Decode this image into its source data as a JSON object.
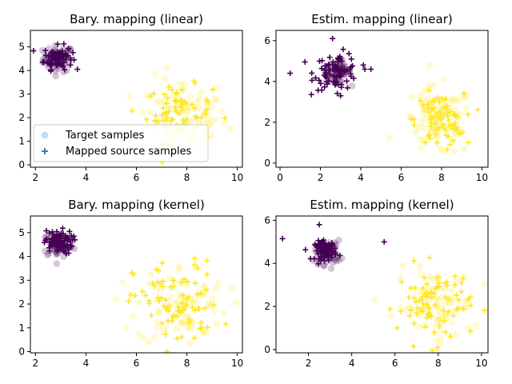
{
  "colors": {
    "dark": "#440154",
    "yellow": "#fde725",
    "target_marker": "#1f77b4"
  },
  "legend": {
    "placement": "lower-left of first panel",
    "entries": [
      "Target samples",
      "Mapped source samples"
    ]
  },
  "chart_data": [
    {
      "type": "scatter",
      "title": "Bary. mapping (linear)",
      "xlim": [
        1.8,
        10.2
      ],
      "ylim": [
        -0.1,
        5.7
      ],
      "xticks": [
        2,
        4,
        6,
        8,
        10
      ],
      "yticks": [
        0,
        1,
        2,
        3,
        4,
        5
      ],
      "target_clusters": [
        {
          "cx": 2.9,
          "cy": 4.5,
          "sx": 0.3,
          "sy": 0.28,
          "n": 60,
          "color": "dark"
        },
        {
          "cx": 7.8,
          "cy": 2.0,
          "sx": 0.9,
          "sy": 0.85,
          "n": 80,
          "color": "yellow"
        }
      ],
      "source_clusters": [
        {
          "cx": 2.9,
          "cy": 4.55,
          "sx": 0.28,
          "sy": 0.25,
          "n": 80,
          "color": "dark"
        },
        {
          "cx": 7.7,
          "cy": 2.15,
          "sx": 0.65,
          "sy": 0.6,
          "n": 80,
          "color": "yellow"
        }
      ],
      "legend": true
    },
    {
      "type": "scatter",
      "title": "Estim. mapping (linear)",
      "xlim": [
        -0.2,
        10.3
      ],
      "ylim": [
        -0.2,
        6.5
      ],
      "xticks": [
        0,
        2,
        4,
        6,
        8,
        10
      ],
      "yticks": [
        0,
        2,
        4,
        6
      ],
      "target_clusters": [
        {
          "cx": 2.9,
          "cy": 4.5,
          "sx": 0.3,
          "sy": 0.28,
          "n": 60,
          "color": "dark"
        },
        {
          "cx": 7.8,
          "cy": 2.0,
          "sx": 0.9,
          "sy": 0.85,
          "n": 80,
          "color": "yellow"
        }
      ],
      "source_clusters": [
        {
          "cx": 2.8,
          "cy": 4.5,
          "sx": 0.55,
          "sy": 0.45,
          "n": 80,
          "color": "dark"
        },
        {
          "cx": 7.9,
          "cy": 2.1,
          "sx": 0.6,
          "sy": 0.65,
          "n": 80,
          "color": "yellow"
        }
      ],
      "outliers": [
        [
          0.5,
          4.4
        ],
        [
          2.6,
          6.1
        ],
        [
          3.0,
          3.3
        ],
        [
          4.2,
          4.6
        ],
        [
          4.5,
          4.6
        ]
      ],
      "legend": false
    },
    {
      "type": "scatter",
      "title": "Bary. mapping (kernel)",
      "xlim": [
        1.8,
        10.2
      ],
      "ylim": [
        -0.05,
        5.7
      ],
      "xticks": [
        2,
        4,
        6,
        8,
        10
      ],
      "yticks": [
        0,
        1,
        2,
        3,
        4,
        5
      ],
      "target_clusters": [
        {
          "cx": 2.9,
          "cy": 4.5,
          "sx": 0.3,
          "sy": 0.28,
          "n": 60,
          "color": "dark"
        },
        {
          "cx": 7.8,
          "cy": 2.0,
          "sx": 0.9,
          "sy": 0.85,
          "n": 80,
          "color": "yellow"
        }
      ],
      "source_clusters": [
        {
          "cx": 2.9,
          "cy": 4.6,
          "sx": 0.28,
          "sy": 0.25,
          "n": 80,
          "color": "dark"
        },
        {
          "cx": 7.6,
          "cy": 2.0,
          "sx": 0.85,
          "sy": 0.9,
          "n": 80,
          "color": "yellow"
        }
      ],
      "legend": false
    },
    {
      "type": "scatter",
      "title": "Estim. mapping (kernel)",
      "xlim": [
        0.5,
        10.3
      ],
      "ylim": [
        -0.15,
        6.2
      ],
      "xticks": [
        2,
        4,
        6,
        8,
        10
      ],
      "yticks": [
        0,
        2,
        4,
        6
      ],
      "target_clusters": [
        {
          "cx": 2.9,
          "cy": 4.5,
          "sx": 0.3,
          "sy": 0.28,
          "n": 60,
          "color": "dark"
        },
        {
          "cx": 7.8,
          "cy": 2.0,
          "sx": 0.9,
          "sy": 0.85,
          "n": 80,
          "color": "yellow"
        }
      ],
      "source_clusters": [
        {
          "cx": 2.8,
          "cy": 4.6,
          "sx": 0.25,
          "sy": 0.22,
          "n": 80,
          "color": "dark"
        },
        {
          "cx": 7.8,
          "cy": 2.1,
          "sx": 0.85,
          "sy": 0.9,
          "n": 80,
          "color": "yellow"
        }
      ],
      "outliers": [
        [
          0.8,
          5.15
        ],
        [
          2.5,
          5.8
        ],
        [
          5.5,
          5.0
        ]
      ],
      "legend": false
    }
  ]
}
